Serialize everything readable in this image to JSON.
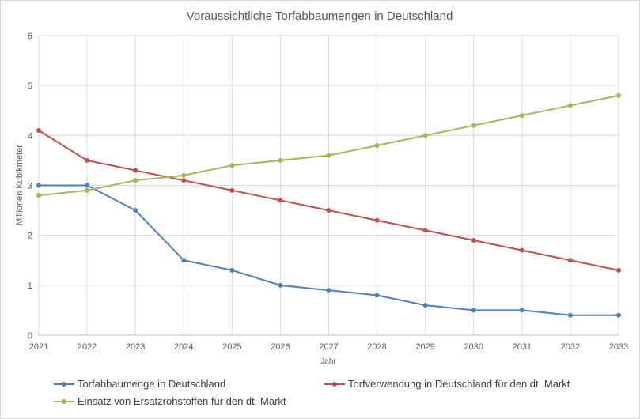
{
  "chart_data": {
    "type": "line",
    "title": "Voraussichtliche Torfabbaumengen in Deutschland",
    "xlabel": "Jahr",
    "ylabel": "Millionen Kubikmeter",
    "ylim": [
      0,
      6
    ],
    "yticks": [
      "0",
      "1",
      "2",
      "3",
      "4",
      "5",
      "6"
    ],
    "grid": true,
    "legend_position": "bottom",
    "categories": [
      "2021",
      "2022",
      "2023",
      "2024",
      "2025",
      "2026",
      "2027",
      "2028",
      "2029",
      "2030",
      "2031",
      "2032",
      "2033"
    ],
    "series": [
      {
        "name": "Torfabbaumenge in Deutschland",
        "color": "#4f81bd",
        "values": [
          3.0,
          3.0,
          2.5,
          1.5,
          1.3,
          1.0,
          0.9,
          0.8,
          0.6,
          0.5,
          0.5,
          0.4,
          0.4
        ]
      },
      {
        "name": "Torfverwendung in Deutschland für den dt. Markt",
        "color": "#c0504d",
        "values": [
          4.1,
          3.5,
          3.3,
          3.1,
          2.9,
          2.7,
          2.5,
          2.3,
          2.1,
          1.9,
          1.7,
          1.5,
          1.3
        ]
      },
      {
        "name": "Einsatz von Ersatzrohstoffen für den dt. Markt",
        "color": "#9bbb59",
        "values": [
          2.8,
          2.9,
          3.1,
          3.2,
          3.4,
          3.5,
          3.6,
          3.8,
          4.0,
          4.2,
          4.4,
          4.6,
          4.8
        ]
      }
    ]
  }
}
